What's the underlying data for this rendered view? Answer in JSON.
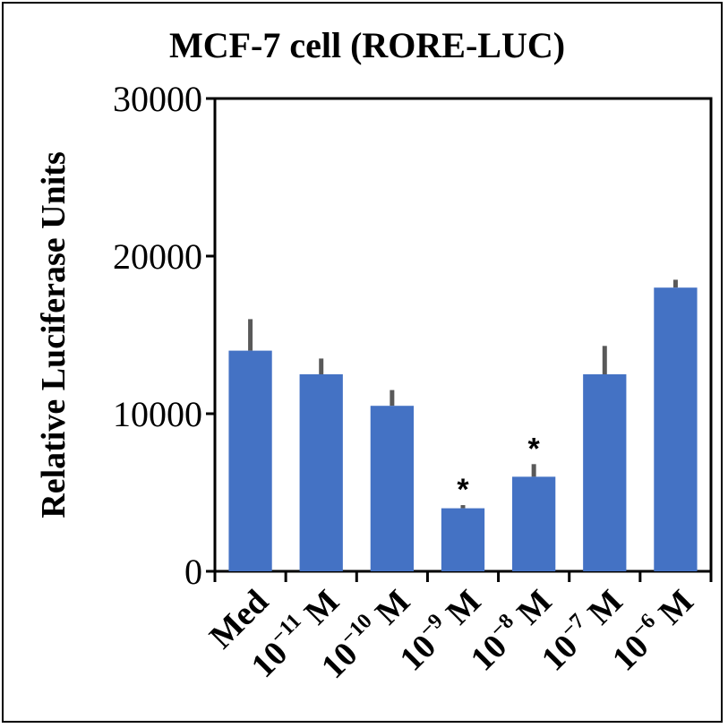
{
  "chart_data": {
    "type": "bar",
    "title": "MCF-7 cell (RORE-LUC)",
    "ylabel": "Relative Luciferase Units",
    "xlabel": "",
    "ylim": [
      0,
      30000
    ],
    "yticks": [
      0,
      10000,
      20000,
      30000
    ],
    "ytick_labels": [
      "0",
      "10000",
      "20000",
      "30000"
    ],
    "categories": [
      {
        "base": "Med",
        "exp": "",
        "unit": ""
      },
      {
        "base": "10",
        "exp": "−11",
        "unit": " M"
      },
      {
        "base": "10",
        "exp": "−10",
        "unit": " M"
      },
      {
        "base": "10",
        "exp": "−9",
        "unit": " M"
      },
      {
        "base": "10",
        "exp": "−8",
        "unit": " M"
      },
      {
        "base": "10",
        "exp": "−7",
        "unit": " M"
      },
      {
        "base": "10",
        "exp": "−6",
        "unit": " M"
      }
    ],
    "values": [
      14000,
      12500,
      10500,
      4000,
      6000,
      12500,
      18000
    ],
    "errors": [
      2000,
      1000,
      1000,
      200,
      800,
      1800,
      500
    ],
    "significance": [
      "",
      "",
      "",
      "*",
      "*",
      "",
      ""
    ],
    "bar_color": "#4472C4",
    "error_color": "#595959",
    "grid": false,
    "legend": "none"
  }
}
